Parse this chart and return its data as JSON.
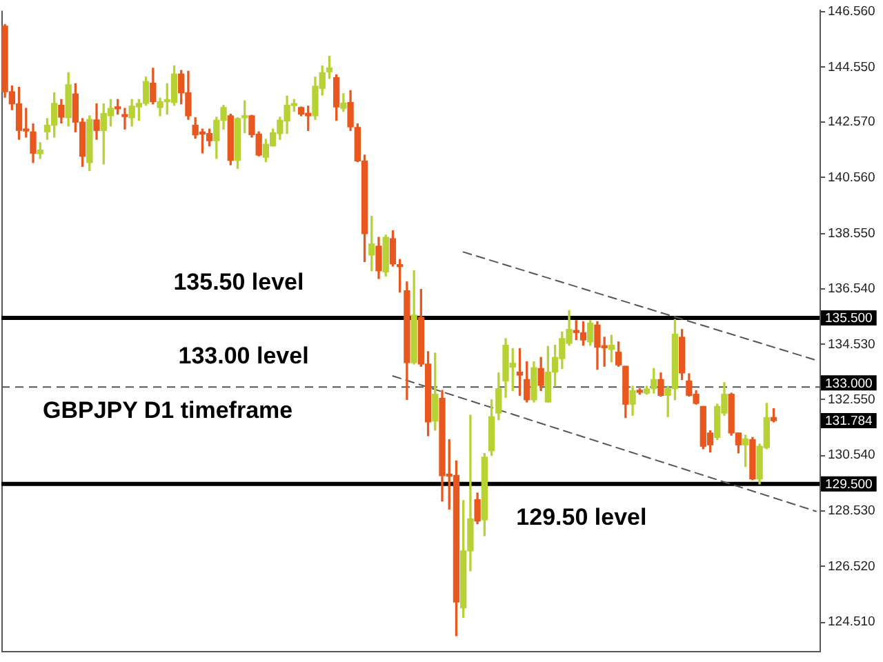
{
  "chart_data": {
    "type": "candlestick",
    "title": "GBPJPY D1 timeframe",
    "categories": [
      null,
      null,
      null,
      null,
      null,
      null,
      null,
      null,
      null,
      null,
      null,
      null,
      null,
      null,
      null,
      null,
      null,
      null,
      null,
      null,
      null,
      null,
      null,
      null,
      null,
      null,
      null,
      null,
      null,
      null,
      null,
      null,
      null,
      null,
      null,
      null,
      null,
      null,
      null,
      null,
      null,
      null,
      null,
      null,
      null,
      null,
      null,
      null,
      null,
      null,
      null,
      null,
      null,
      null,
      null,
      null,
      null,
      null,
      null,
      null,
      null,
      null,
      null,
      null,
      null,
      null,
      null,
      null,
      null,
      null,
      null,
      null,
      null,
      null,
      null,
      null,
      null,
      null,
      null,
      null,
      null,
      null,
      null,
      null,
      null,
      null,
      null,
      null,
      null,
      null,
      null,
      null,
      null,
      null,
      null,
      null,
      null,
      null,
      null,
      null,
      null,
      null,
      null,
      null,
      null,
      null,
      null,
      null,
      null,
      null,
      null,
      null,
      null,
      null,
      null,
      null
    ],
    "ohlc": [
      [
        146.04,
        146.1,
        143.47,
        143.67
      ],
      [
        143.67,
        143.88,
        143.02,
        143.23
      ],
      [
        143.23,
        143.83,
        141.95,
        142.27
      ],
      [
        142.27,
        143.07,
        142.03,
        142.25
      ],
      [
        142.22,
        142.51,
        141.11,
        141.45
      ],
      [
        141.43,
        141.83,
        141.26,
        141.56
      ],
      [
        142.22,
        142.7,
        141.95,
        142.46
      ],
      [
        142.46,
        143.63,
        142.03,
        143.25
      ],
      [
        143.18,
        143.39,
        142.54,
        142.75
      ],
      [
        142.73,
        144.36,
        142.43,
        143.92
      ],
      [
        143.59,
        143.96,
        142.22,
        142.57
      ],
      [
        142.57,
        142.7,
        140.97,
        141.34
      ],
      [
        141.11,
        142.8,
        140.82,
        142.67
      ],
      [
        142.65,
        143.23,
        141.95,
        142.27
      ],
      [
        142.27,
        143.23,
        141.06,
        142.88
      ],
      [
        142.8,
        143.39,
        142.43,
        143.07
      ],
      [
        143.07,
        143.39,
        142.86,
        143.05
      ],
      [
        142.83,
        143.07,
        142.32,
        142.77
      ],
      [
        142.73,
        143.39,
        142.43,
        143.15
      ],
      [
        143.12,
        143.39,
        142.64,
        143.25
      ],
      [
        143.25,
        144.2,
        143.18,
        144.04
      ],
      [
        143.98,
        144.52,
        143.23,
        143.31
      ],
      [
        143.1,
        143.44,
        142.8,
        143.31
      ],
      [
        143.31,
        143.96,
        142.86,
        143.33
      ],
      [
        143.28,
        144.6,
        143.18,
        144.31
      ],
      [
        144.31,
        144.44,
        143.23,
        143.63
      ],
      [
        143.63,
        144.41,
        142.67,
        142.8
      ],
      [
        142.46,
        142.73,
        141.99,
        142.11
      ],
      [
        142.16,
        142.32,
        141.46,
        142.14
      ],
      [
        142.16,
        142.32,
        141.71,
        141.9
      ],
      [
        141.9,
        142.75,
        141.26,
        142.64
      ],
      [
        142.64,
        143.18,
        142.32,
        143.1
      ],
      [
        142.8,
        142.86,
        141.03,
        141.19
      ],
      [
        141.19,
        142.73,
        140.9,
        142.7
      ],
      [
        142.73,
        143.34,
        142.19,
        142.75
      ],
      [
        142.8,
        142.82,
        142.03,
        142.12
      ],
      [
        142.14,
        142.22,
        141.35,
        141.38
      ],
      [
        141.3,
        141.95,
        141.14,
        141.77
      ],
      [
        141.71,
        142.32,
        141.71,
        142.19
      ],
      [
        142.16,
        142.75,
        141.95,
        142.64
      ],
      [
        142.61,
        143.51,
        142.16,
        143.18
      ],
      [
        143.17,
        143.39,
        142.96,
        143.2
      ],
      [
        143.1,
        143.12,
        142.8,
        142.86
      ],
      [
        142.89,
        143.15,
        142.27,
        142.8
      ],
      [
        142.8,
        144.2,
        142.67,
        143.87
      ],
      [
        143.79,
        144.6,
        143.55,
        144.36
      ],
      [
        144.39,
        144.95,
        144.15,
        144.53
      ],
      [
        144.18,
        144.28,
        142.64,
        143.12
      ],
      [
        143.07,
        143.6,
        142.96,
        143.26
      ],
      [
        143.28,
        143.71,
        142.27,
        142.4
      ],
      [
        142.38,
        142.51,
        141.14,
        141.17
      ],
      [
        141.17,
        141.38,
        137.53,
        138.54
      ],
      [
        137.77,
        139.17,
        137.2,
        138.17
      ],
      [
        138.09,
        138.41,
        136.92,
        137.2
      ],
      [
        137.16,
        138.49,
        137.01,
        138.41
      ],
      [
        138.36,
        138.65,
        137.37,
        137.45
      ],
      [
        137.37,
        137.61,
        136.43,
        137.35
      ],
      [
        136.48,
        136.8,
        132.55,
        133.88
      ],
      [
        133.88,
        137.2,
        133.83,
        135.6
      ],
      [
        135.52,
        136.53,
        133.75,
        133.83
      ],
      [
        133.83,
        134.28,
        131.24,
        131.74
      ],
      [
        131.77,
        134.23,
        131.44,
        132.74
      ],
      [
        132.59,
        132.88,
        128.88,
        129.8
      ],
      [
        129.8,
        131.1,
        128.59,
        129.78
      ],
      [
        129.81,
        130.33,
        124.02,
        125.23
      ],
      [
        125.02,
        128.9,
        124.68,
        127.08
      ],
      [
        127.08,
        131.98,
        126.36,
        128.24
      ],
      [
        128.93,
        129.17,
        128.06,
        128.16
      ],
      [
        128.2,
        130.6,
        127.63,
        130.47
      ],
      [
        130.7,
        132.54,
        130.53,
        131.93
      ],
      [
        132.06,
        133.51,
        131.82,
        132.94
      ],
      [
        133.22,
        134.75,
        132.63,
        134.51
      ],
      [
        133.72,
        134.39,
        132.87,
        133.86
      ],
      [
        133.54,
        134.39,
        132.7,
        133.43
      ],
      [
        133.27,
        133.91,
        132.46,
        132.54
      ],
      [
        132.54,
        133.91,
        132.46,
        133.7
      ],
      [
        133.67,
        134.07,
        132.87,
        133.06
      ],
      [
        132.46,
        134.47,
        132.46,
        133.54
      ],
      [
        133.54,
        134.51,
        133.03,
        134.07
      ],
      [
        134.03,
        134.99,
        133.67,
        134.75
      ],
      [
        134.58,
        135.76,
        134.51,
        135.08
      ],
      [
        134.99,
        135.4,
        134.71,
        134.97
      ],
      [
        134.96,
        135.36,
        134.51,
        134.7
      ],
      [
        134.63,
        135.4,
        134.51,
        135.31
      ],
      [
        135.24,
        135.36,
        133.64,
        134.44
      ],
      [
        134.44,
        134.8,
        133.75,
        134.42
      ],
      [
        134.36,
        134.87,
        133.91,
        134.51
      ],
      [
        134.26,
        134.63,
        133.75,
        133.8
      ],
      [
        133.75,
        133.75,
        131.9,
        132.38
      ],
      [
        132.38,
        133.03,
        131.98,
        132.87
      ],
      [
        132.84,
        132.94,
        132.74,
        132.81
      ],
      [
        132.78,
        133.03,
        132.74,
        132.93
      ],
      [
        132.94,
        133.67,
        132.78,
        133.27
      ],
      [
        133.27,
        133.51,
        132.67,
        132.7
      ],
      [
        132.7,
        133.03,
        131.93,
        132.94
      ],
      [
        132.94,
        135.44,
        132.54,
        134.91
      ],
      [
        134.8,
        135.08,
        133.27,
        133.51
      ],
      [
        133.22,
        133.48,
        132.67,
        132.7
      ],
      [
        132.74,
        132.87,
        132.38,
        132.41
      ],
      [
        132.3,
        132.3,
        130.77,
        130.86
      ],
      [
        131.34,
        131.42,
        130.65,
        130.91
      ],
      [
        131.18,
        132.38,
        131.1,
        132.3
      ],
      [
        132.06,
        133.16,
        131.98,
        132.74
      ],
      [
        132.74,
        132.78,
        131.26,
        131.34
      ],
      [
        131.34,
        131.34,
        130.62,
        130.91
      ],
      [
        130.91,
        131.26,
        130.13,
        131.13
      ],
      [
        131.1,
        131.18,
        129.65,
        129.68
      ],
      [
        129.68,
        130.94,
        129.5,
        130.86
      ],
      [
        130.81,
        132.41,
        130.77,
        131.9
      ],
      [
        131.9,
        132.22,
        131.74,
        131.784
      ],
      null,
      null,
      null,
      null,
      null,
      null
    ],
    "colors": [
      "#e8581e",
      "#e8581e",
      "#e8581e",
      "#e8581e",
      "#e8581e",
      "#b6d234",
      "#b6d234",
      "#b6d234",
      "#e8581e",
      "#b6d234",
      "#e8581e",
      "#e8581e",
      "#b6d234",
      "#e8581e",
      "#b6d234",
      "#b6d234",
      "#e8581e",
      "#e8581e",
      "#b6d234",
      "#b6d234",
      "#b6d234",
      "#e8581e",
      "#b6d234",
      "#b6d234",
      "#b6d234",
      "#e8581e",
      "#e8581e",
      "#e8581e",
      "#e8581e",
      "#e8581e",
      "#b6d234",
      "#b6d234",
      "#e8581e",
      "#b6d234",
      "#b6d234",
      "#e8581e",
      "#e8581e",
      "#b6d234",
      "#b6d234",
      "#b6d234",
      "#b6d234",
      "#b6d234",
      "#e8581e",
      "#e8581e",
      "#b6d234",
      "#b6d234",
      "#b6d234",
      "#e8581e",
      "#b6d234",
      "#e8581e",
      "#e8581e",
      "#e8581e",
      "#b6d234",
      "#e8581e",
      "#b6d234",
      "#e8581e",
      "#e8581e",
      "#e8581e",
      "#b6d234",
      "#e8581e",
      "#e8581e",
      "#b6d234",
      "#e8581e",
      "#e8581e",
      "#e8581e",
      "#b6d234",
      "#b6d234",
      "#e8581e",
      "#b6d234",
      "#b6d234",
      "#b6d234",
      "#b6d234",
      "#b6d234",
      "#e8581e",
      "#e8581e",
      "#b6d234",
      "#e8581e",
      "#b6d234",
      "#b6d234",
      "#b6d234",
      "#b6d234",
      "#e8581e",
      "#e8581e",
      "#b6d234",
      "#e8581e",
      "#e8581e",
      "#b6d234",
      "#e8581e",
      "#e8581e",
      "#b6d234",
      "#e8581e",
      "#b6d234",
      "#b6d234",
      "#e8581e",
      "#b6d234",
      "#b6d234",
      "#e8581e",
      "#e8581e",
      "#e8581e",
      "#e8581e",
      "#e8581e",
      "#b6d234",
      "#b6d234",
      "#e8581e",
      "#e8581e",
      "#b6d234",
      "#e8581e",
      "#b6d234",
      "#b6d234",
      "#e8581e",
      null,
      null,
      null,
      null,
      null,
      null
    ],
    "series": [
      {
        "type": "line",
        "color": "#555555",
        "line_style": "dashed",
        "values": [
          null,
          null,
          null,
          null,
          null,
          null,
          null,
          null,
          null,
          null,
          null,
          null,
          null,
          null,
          null,
          null,
          null,
          null,
          null,
          null,
          null,
          null,
          null,
          null,
          null,
          null,
          null,
          null,
          null,
          null,
          null,
          null,
          null,
          null,
          null,
          null,
          null,
          null,
          null,
          null,
          null,
          null,
          null,
          null,
          null,
          null,
          null,
          null,
          null,
          null,
          null,
          null,
          null,
          null,
          null,
          null,
          null,
          null,
          null,
          null,
          null,
          null,
          null,
          null,
          null,
          137.88,
          null,
          null,
          null,
          null,
          null,
          null,
          null,
          null,
          null,
          null,
          null,
          null,
          null,
          null,
          null,
          null,
          null,
          null,
          null,
          null,
          null,
          null,
          null,
          null,
          null,
          null,
          null,
          null,
          null,
          null,
          null,
          null,
          null,
          null,
          null,
          null,
          null,
          null,
          null,
          null,
          null,
          null,
          null,
          null,
          null,
          null,
          null,
          null,
          null,
          133.97
        ]
      },
      {
        "type": "line",
        "color": "#555555",
        "line_style": "dashed",
        "values": [
          null,
          null,
          null,
          null,
          null,
          null,
          null,
          null,
          null,
          null,
          null,
          null,
          null,
          null,
          null,
          null,
          null,
          null,
          null,
          null,
          null,
          null,
          null,
          null,
          null,
          null,
          null,
          null,
          null,
          null,
          null,
          null,
          null,
          null,
          null,
          null,
          null,
          null,
          null,
          null,
          null,
          null,
          null,
          null,
          null,
          null,
          null,
          null,
          null,
          null,
          null,
          null,
          null,
          null,
          null,
          133.4,
          null,
          null,
          null,
          null,
          null,
          null,
          null,
          null,
          null,
          null,
          null,
          null,
          null,
          null,
          null,
          null,
          null,
          null,
          null,
          null,
          null,
          null,
          null,
          null,
          null,
          null,
          null,
          null,
          null,
          null,
          null,
          null,
          null,
          null,
          null,
          null,
          null,
          null,
          null,
          null,
          null,
          null,
          null,
          null,
          null,
          null,
          null,
          null,
          null,
          null,
          null,
          null,
          null,
          null,
          null,
          null,
          null,
          null,
          null,
          128.51
        ]
      }
    ],
    "ylim": [
      123.45,
      146.6
    ],
    "yticks": [
      {
        "value": 124.51,
        "label": "124.510"
      },
      {
        "value": 126.52,
        "label": "126.520"
      },
      {
        "value": 128.53,
        "label": "128.530"
      },
      {
        "value": 130.54,
        "label": "130.540"
      },
      {
        "value": 132.55,
        "label": "132.550"
      },
      {
        "value": 134.53,
        "label": "134.530"
      },
      {
        "value": 136.54,
        "label": "136.540"
      },
      {
        "value": 138.55,
        "label": "138.550"
      },
      {
        "value": 140.56,
        "label": "140.560"
      },
      {
        "value": 142.57,
        "label": "142.570"
      },
      {
        "value": 144.55,
        "label": "144.550"
      },
      {
        "value": 146.56,
        "label": "146.560"
      }
    ],
    "tick_labels": "y",
    "ref_lines": [
      {
        "axis": "y",
        "value": 135.5,
        "label": "135.500",
        "color": "#000000",
        "line_style": "solid"
      },
      {
        "axis": "y",
        "value": 133.0,
        "label": "133.000",
        "color": "#555555",
        "line_style": "dashed"
      },
      {
        "axis": "y",
        "value": 129.5,
        "label": "129.500",
        "color": "#000000",
        "line_style": "solid"
      }
    ],
    "annotations": [
      {
        "text": "135.50 level",
        "y": 135.5
      },
      {
        "text": "133.00 level",
        "y": 133.0
      },
      {
        "text": "129.50 level",
        "y": 129.5
      },
      "131.784"
    ]
  }
}
